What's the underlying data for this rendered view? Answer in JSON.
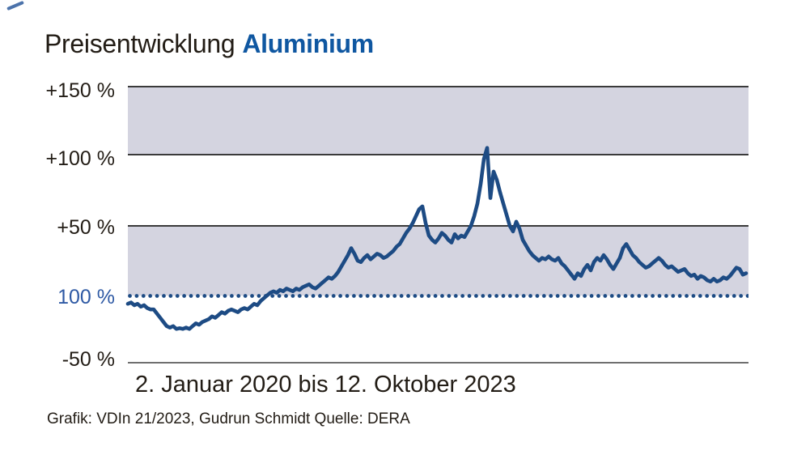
{
  "title": {
    "prefix": "Preisentwicklung",
    "highlight": "Aluminium"
  },
  "x_caption": "2. Januar 2020 bis 12. Oktober 2023",
  "credits": "Grafik: VDIn 21/2023, Gudrun Schmidt Quelle: DERA",
  "colors": {
    "line": "#1d4b84",
    "band": "#d4d4e0",
    "band_border": "#3a3a3a",
    "axis_gray": "#6f6f6f",
    "accent_blue": "#0f57a1",
    "baseline_label_blue": "#2e59a4",
    "text": "#221c15"
  },
  "chart_data": {
    "type": "line",
    "title": "Preisentwicklung Aluminium",
    "xlabel": "2. Januar 2020 bis 12. Oktober 2023",
    "ylabel": "",
    "x_range": [
      "2. Januar 2020",
      "12. Oktober 2023"
    ],
    "ylim": [
      -50,
      150
    ],
    "grid": "shaded bands 0..50 and 100..150; dotted baseline at 0; solid gridline at -50",
    "y_ticks": [
      {
        "label": "+150 %",
        "value": 150
      },
      {
        "label": "+100 %",
        "value": 100
      },
      {
        "label": "+50 %",
        "value": 50
      },
      {
        "label": "100 %",
        "value": 0,
        "note": "blue baseline label, index start = 100 %"
      },
      {
        "label": "-50 %",
        "value": -50
      }
    ],
    "baseline": {
      "value": 0,
      "label": "100 %",
      "style": "dotted"
    },
    "bands": [
      {
        "from": 100,
        "to": 150
      },
      {
        "from": 0,
        "to": 50
      }
    ],
    "legend_position": "none",
    "series": [
      {
        "name": "Aluminium",
        "unit": "percent change vs. 2.1.2020",
        "values": [
          -6,
          -5,
          -7,
          -6,
          -8,
          -7,
          -9,
          -10,
          -10,
          -13,
          -16,
          -19,
          -22,
          -23,
          -22,
          -24,
          -23.5,
          -24,
          -23,
          -24,
          -22,
          -20,
          -21,
          -19,
          -18,
          -17,
          -15,
          -16,
          -14,
          -12,
          -13,
          -11,
          -10,
          -11,
          -12,
          -10,
          -9,
          -10,
          -8,
          -6,
          -7,
          -4,
          -2,
          0,
          2,
          3,
          2,
          4,
          3,
          5,
          4,
          3,
          5,
          4,
          6,
          7,
          8,
          6,
          5,
          7,
          9,
          11,
          13,
          12,
          14,
          17,
          21,
          25,
          29,
          34,
          30,
          25,
          24,
          27,
          29,
          26,
          28,
          30,
          29,
          27,
          28,
          30,
          32,
          35,
          37,
          41,
          45,
          48,
          52,
          57,
          62,
          64,
          52,
          43,
          40,
          38,
          41,
          45,
          43,
          40,
          38,
          44,
          41,
          43,
          42,
          46,
          50,
          57,
          66,
          80,
          98,
          106,
          70,
          89,
          83,
          74,
          66,
          58,
          50,
          46,
          53,
          48,
          40,
          36,
          32,
          29,
          27,
          25,
          27,
          26,
          28,
          26,
          25,
          27,
          23,
          21,
          18,
          15,
          12,
          16,
          14,
          19,
          22,
          18,
          24,
          27,
          25,
          29,
          26,
          22,
          19,
          23,
          27,
          34,
          37,
          33,
          29,
          27,
          24,
          22,
          20,
          21,
          23,
          25,
          27,
          25,
          22,
          20,
          21,
          19,
          17,
          18,
          19,
          16,
          14,
          15,
          12,
          14,
          13,
          11,
          10,
          12,
          10,
          11,
          13,
          12,
          14,
          17,
          20,
          19,
          15,
          16
        ]
      }
    ]
  }
}
